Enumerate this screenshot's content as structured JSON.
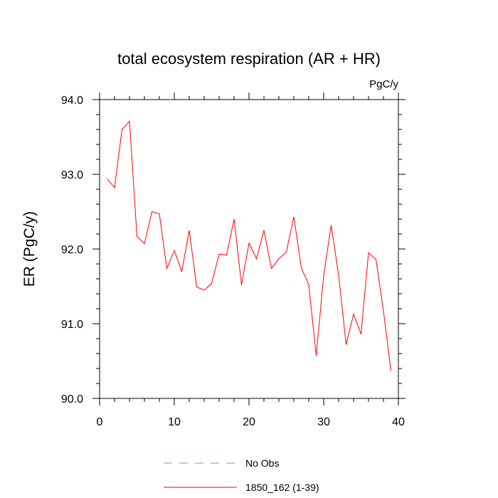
{
  "chart_data": {
    "type": "line",
    "title": "total ecosystem respiration (AR + HR)",
    "units": "PgC/y",
    "ylabel": "ER  (PgC/y)",
    "xlabel": "",
    "xlim": [
      0,
      40
    ],
    "ylim": [
      90.0,
      94.0
    ],
    "x_ticks": [
      0,
      10,
      20,
      30,
      40
    ],
    "x_tick_labels": [
      "0",
      "10",
      "20",
      "30",
      "40"
    ],
    "y_ticks": [
      90.0,
      91.0,
      92.0,
      93.0,
      94.0
    ],
    "y_tick_labels": [
      "90.0",
      "91.0",
      "92.0",
      "93.0",
      "94.0"
    ],
    "grid": false,
    "legend_position": "bottom",
    "series": [
      {
        "name": "No Obs",
        "color": "#8a8aff",
        "dash": "dashed",
        "x": [],
        "y": []
      },
      {
        "name": "1850_162 (1-39)",
        "color": "#ff0000",
        "dash": "solid",
        "x": [
          1,
          2,
          3,
          4,
          5,
          6,
          7,
          8,
          9,
          10,
          11,
          12,
          13,
          14,
          15,
          16,
          17,
          18,
          19,
          20,
          21,
          22,
          23,
          24,
          25,
          26,
          27,
          28,
          29,
          30,
          31,
          32,
          33,
          34,
          35,
          36,
          37,
          38,
          39
        ],
        "y": [
          92.94,
          92.82,
          93.6,
          93.71,
          92.17,
          92.07,
          92.5,
          92.47,
          91.74,
          91.98,
          91.7,
          92.25,
          91.49,
          91.45,
          91.54,
          91.93,
          91.92,
          92.4,
          91.52,
          92.08,
          91.87,
          92.25,
          91.74,
          91.87,
          91.96,
          92.43,
          91.75,
          91.52,
          90.57,
          91.65,
          92.32,
          91.65,
          90.72,
          91.13,
          90.86,
          91.95,
          91.86,
          91.17,
          90.37
        ]
      }
    ]
  }
}
